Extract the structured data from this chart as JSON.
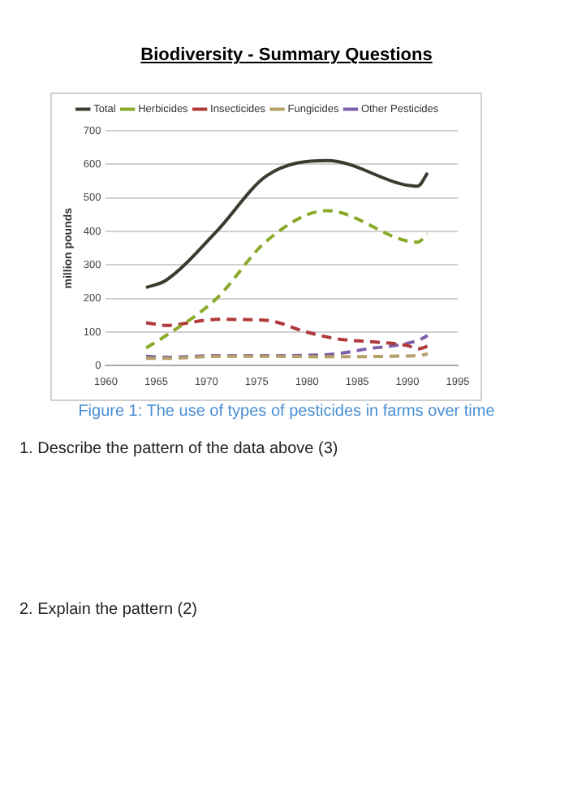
{
  "chart_data": {
    "type": "line",
    "title": "Biodiversity - Summary Questions",
    "ylabel": "million pounds",
    "xlim": [
      1960,
      1995
    ],
    "xticks": [
      1960,
      1965,
      1970,
      1975,
      1980,
      1985,
      1990,
      1995
    ],
    "ylim": [
      0,
      700
    ],
    "yticks": [
      0,
      100,
      200,
      300,
      400,
      500,
      600,
      700
    ],
    "grid": "y",
    "legend": "top",
    "marker": "none",
    "series": [
      {
        "name": "Total",
        "color": "#3b3b30",
        "line_style": "solid",
        "x": [
          1964,
          1966,
          1971,
          1976,
          1982,
          1991,
          1992
        ],
        "values": [
          233,
          255,
          400,
          566,
          611,
          535,
          574
        ]
      },
      {
        "name": "Herbicides",
        "color": "#8aab2a",
        "line_style": "dashed",
        "x": [
          1964,
          1966,
          1971,
          1976,
          1982,
          1991,
          1992
        ],
        "values": [
          53,
          90,
          200,
          372,
          462,
          368,
          393
        ]
      },
      {
        "name": "Insecticides",
        "color": "#b03a3a",
        "line_style": "dashed",
        "x": [
          1964,
          1966,
          1971,
          1976,
          1980,
          1983,
          1987,
          1990,
          1991,
          1992
        ],
        "values": [
          128,
          120,
          138,
          135,
          100,
          80,
          70,
          60,
          50,
          58
        ]
      },
      {
        "name": "Fungicides",
        "color": "#b5a06a",
        "line_style": "dashed",
        "x": [
          1964,
          1966,
          1971,
          1976,
          1982,
          1991,
          1992
        ],
        "values": [
          22,
          22,
          28,
          28,
          27,
          30,
          35
        ]
      },
      {
        "name": "Other Pesticides",
        "color": "#7d5fa8",
        "line_style": "dashed",
        "x": [
          1964,
          1966,
          1971,
          1976,
          1982,
          1986,
          1991,
          1992
        ],
        "values": [
          28,
          25,
          30,
          30,
          33,
          50,
          75,
          90
        ]
      }
    ],
    "annotations": [
      "Figure 1: The use of types of pesticides in farms over time",
      "1.  Describe the pattern of the data above (3)",
      "2.  Explain the pattern (2)"
    ]
  }
}
